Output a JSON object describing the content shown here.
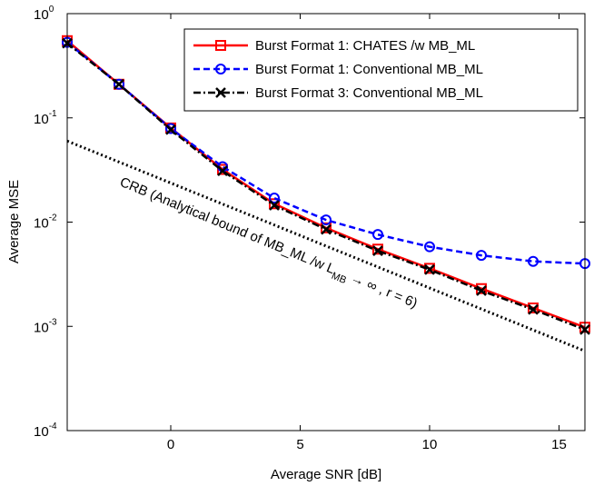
{
  "chart_data": {
    "type": "line",
    "xlabel": "Average SNR [dB]",
    "ylabel": "Average MSE",
    "xlim": [
      -4,
      16
    ],
    "ylim": [
      0.0001,
      1
    ],
    "yscale": "log",
    "grid": false,
    "legend_position": "top-right",
    "x_ticks": [
      0,
      5,
      10,
      15
    ],
    "y_ticks": [
      {
        "value": 1,
        "base": "10",
        "exp": "0"
      },
      {
        "value": 0.1,
        "base": "10",
        "exp": "-1"
      },
      {
        "value": 0.01,
        "base": "10",
        "exp": "-2"
      },
      {
        "value": 0.001,
        "base": "10",
        "exp": "-3"
      },
      {
        "value": 0.0001,
        "base": "10",
        "exp": "-4"
      }
    ],
    "x": [
      -4,
      -2,
      0,
      2,
      4,
      6,
      8,
      10,
      12,
      14,
      16
    ],
    "series": [
      {
        "name": "Burst Format 1: CHATES /w MB_ML",
        "color": "#ff0000",
        "dash": "solid",
        "marker": "square",
        "values": [
          0.55,
          0.21,
          0.08,
          0.032,
          0.015,
          0.0088,
          0.0055,
          0.0036,
          0.0023,
          0.0015,
          0.00098
        ]
      },
      {
        "name": "Burst Format 1: Conventional MB_ML",
        "color": "#0000ff",
        "dash": "dashed",
        "marker": "circle",
        "values": [
          0.53,
          0.21,
          0.079,
          0.034,
          0.017,
          0.0105,
          0.0076,
          0.0058,
          0.0048,
          0.0042,
          0.004
        ]
      },
      {
        "name": "Burst Format 3: Conventional MB_ML",
        "color": "#000000",
        "dash": "dashdot",
        "marker": "x",
        "values": [
          0.52,
          0.21,
          0.077,
          0.031,
          0.0145,
          0.0085,
          0.0053,
          0.0035,
          0.0022,
          0.00145,
          0.00093
        ]
      }
    ],
    "reference_line": {
      "color": "#000000",
      "dash": "dotted",
      "x": [
        -4,
        16
      ],
      "values": [
        0.06,
        0.00058
      ]
    },
    "annotation": {
      "main": "CRB  (Analytical bound of MB_ML /w L",
      "sub": "MB",
      "tail": "→ ∞ , r = 6)"
    }
  }
}
